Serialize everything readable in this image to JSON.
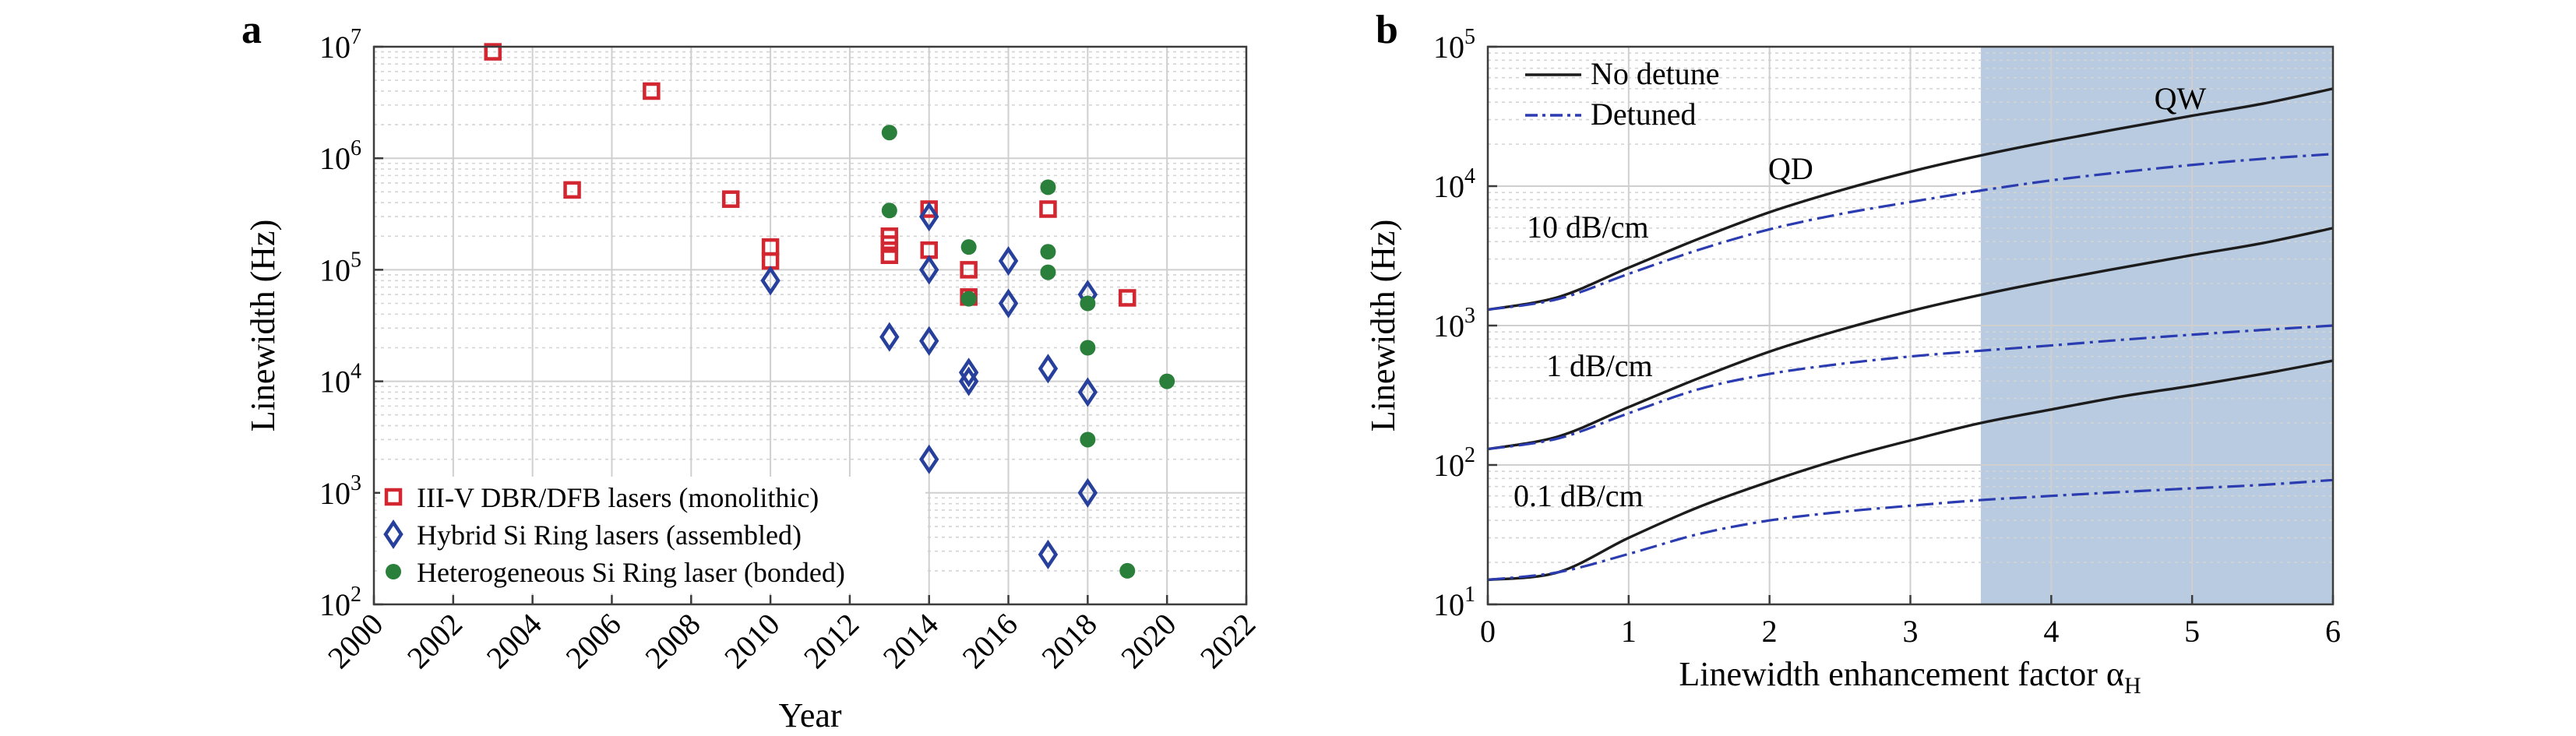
{
  "colors": {
    "monolithic": "#d22630",
    "hybrid": "#27409b",
    "bonded": "#2a7f3a",
    "no_detune": "#1c1c1c",
    "detuned": "#2b3bb0",
    "qw_region": "#b9cbe0"
  },
  "chart_data": [
    {
      "panel": "a",
      "type": "scatter",
      "xlabel": "Year",
      "ylabel": "Linewidth (Hz)",
      "xlim": [
        2000,
        2022
      ],
      "ylim": [
        100,
        10000000
      ],
      "yscale": "log",
      "x_ticks": [
        "2000",
        "2002",
        "2004",
        "2006",
        "2008",
        "2010",
        "2012",
        "2014",
        "2016",
        "2018",
        "2020",
        "2022"
      ],
      "y_ticks": [
        {
          "base": "10",
          "exp": "2"
        },
        {
          "base": "10",
          "exp": "3"
        },
        {
          "base": "10",
          "exp": "4"
        },
        {
          "base": "10",
          "exp": "5"
        },
        {
          "base": "10",
          "exp": "6"
        },
        {
          "base": "10",
          "exp": "7"
        }
      ],
      "grid": true,
      "legend_position": "bottom-left",
      "series": [
        {
          "name": "III-V DBR/DFB lasers (monolithic)",
          "marker": "square",
          "points": [
            [
              2003,
              9000000
            ],
            [
              2005,
              520000
            ],
            [
              2007,
              4000000
            ],
            [
              2009,
              430000
            ],
            [
              2010,
              160000
            ],
            [
              2010,
              120000
            ],
            [
              2013,
              200000
            ],
            [
              2013,
              170000
            ],
            [
              2013,
              135000
            ],
            [
              2014,
              350000
            ],
            [
              2014,
              150000
            ],
            [
              2015,
              100000
            ],
            [
              2015,
              57000
            ],
            [
              2017,
              350000
            ],
            [
              2019,
              56000
            ]
          ]
        },
        {
          "name": "Hybrid Si Ring lasers (assembled)",
          "marker": "diamond",
          "points": [
            [
              2010,
              80000
            ],
            [
              2013,
              25000
            ],
            [
              2014,
              300000
            ],
            [
              2014,
              100000
            ],
            [
              2014,
              23000
            ],
            [
              2014,
              2000
            ],
            [
              2015,
              12000
            ],
            [
              2015,
              10000
            ],
            [
              2016,
              120000
            ],
            [
              2016,
              50000
            ],
            [
              2017,
              13000
            ],
            [
              2017,
              280
            ],
            [
              2018,
              60000
            ],
            [
              2018,
              8000
            ],
            [
              2018,
              1000
            ]
          ]
        },
        {
          "name": "Heterogeneous Si Ring laser (bonded)",
          "marker": "circle",
          "points": [
            [
              2013,
              1700000
            ],
            [
              2013,
              340000
            ],
            [
              2015,
              160000
            ],
            [
              2015,
              55000
            ],
            [
              2017,
              550000
            ],
            [
              2017,
              145000
            ],
            [
              2017,
              95000
            ],
            [
              2018,
              50000
            ],
            [
              2018,
              20000
            ],
            [
              2018,
              3000
            ],
            [
              2019,
              200
            ],
            [
              2020,
              10000
            ]
          ]
        }
      ]
    },
    {
      "panel": "b",
      "type": "line",
      "xlabel": "Linewidth enhancement factor α",
      "xlabel_sub": "H",
      "ylabel": "Linewidth (Hz)",
      "xlim": [
        0,
        6
      ],
      "ylim": [
        10,
        100000
      ],
      "yscale": "log",
      "x_ticks": [
        "0",
        "1",
        "2",
        "3",
        "4",
        "5",
        "6"
      ],
      "y_ticks": [
        {
          "base": "10",
          "exp": "1"
        },
        {
          "base": "10",
          "exp": "2"
        },
        {
          "base": "10",
          "exp": "3"
        },
        {
          "base": "10",
          "exp": "4"
        },
        {
          "base": "10",
          "exp": "5"
        }
      ],
      "grid": true,
      "legend_position": "top-left",
      "legend": [
        "No detune",
        "Detuned"
      ],
      "shaded_region": {
        "x_from": 3.5,
        "x_to": 6,
        "label": "QW"
      },
      "annotations": [
        "QD",
        "10 dB/cm",
        "1 dB/cm",
        "0.1 dB/cm"
      ],
      "series": [
        {
          "group": "10 dB/cm",
          "style": "No detune",
          "x": [
            0,
            0.5,
            1,
            1.5,
            2,
            2.5,
            3,
            3.5,
            4,
            4.5,
            5,
            5.5,
            6
          ],
          "y": [
            1300,
            1600,
            2600,
            4200,
            6500,
            9300,
            12700,
            16600,
            21000,
            26000,
            32000,
            39000,
            50000
          ]
        },
        {
          "group": "10 dB/cm",
          "style": "Detuned",
          "x": [
            0,
            0.5,
            1,
            1.5,
            2,
            2.5,
            3,
            3.5,
            4,
            4.5,
            5,
            5.5,
            6
          ],
          "y": [
            1300,
            1550,
            2350,
            3500,
            4900,
            6300,
            7700,
            9300,
            11000,
            12600,
            14200,
            15700,
            17000
          ]
        },
        {
          "group": "1 dB/cm",
          "style": "No detune",
          "x": [
            0,
            0.5,
            1,
            1.5,
            2,
            2.5,
            3,
            3.5,
            4,
            4.5,
            5,
            5.5,
            6
          ],
          "y": [
            130,
            160,
            260,
            420,
            650,
            930,
            1270,
            1660,
            2100,
            2600,
            3200,
            3900,
            5000
          ]
        },
        {
          "group": "1 dB/cm",
          "style": "Detuned",
          "x": [
            0,
            0.5,
            1,
            1.5,
            2,
            2.5,
            3,
            3.5,
            4,
            4.5,
            5,
            5.5,
            6
          ],
          "y": [
            130,
            155,
            235,
            350,
            450,
            530,
            600,
            660,
            720,
            790,
            860,
            930,
            1000
          ]
        },
        {
          "group": "0.1 dB/cm",
          "style": "No detune",
          "x": [
            0,
            0.5,
            1,
            1.5,
            2,
            2.5,
            3,
            3.5,
            4,
            4.5,
            5,
            5.5,
            6
          ],
          "y": [
            15,
            17,
            30,
            50,
            76,
            110,
            150,
            200,
            250,
            310,
            370,
            450,
            560
          ]
        },
        {
          "group": "0.1 dB/cm",
          "style": "Detuned",
          "x": [
            0,
            0.5,
            1,
            1.5,
            2,
            2.5,
            3,
            3.5,
            4,
            4.5,
            5,
            5.5,
            6
          ],
          "y": [
            15,
            17,
            23,
            32,
            40,
            46,
            51,
            56,
            60,
            64,
            68,
            72,
            78
          ]
        }
      ]
    }
  ]
}
